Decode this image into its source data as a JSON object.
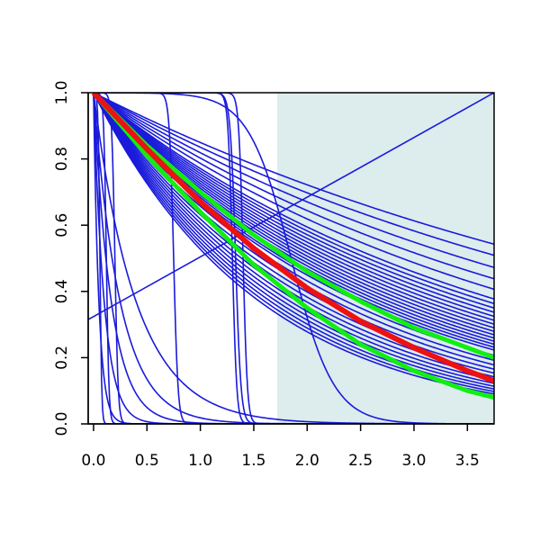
{
  "chart_data": {
    "type": "line",
    "title": "",
    "xlabel": "",
    "ylabel": "",
    "xlim": [
      -0.05,
      3.75
    ],
    "ylim": [
      0.0,
      1.0
    ],
    "x_ticks": [
      0.0,
      0.5,
      1.0,
      1.5,
      2.0,
      2.5,
      3.0,
      3.5
    ],
    "x_tick_labels": [
      "0.0",
      "0.5",
      "1.0",
      "1.5",
      "2.0",
      "2.5",
      "3.0",
      "3.5"
    ],
    "y_ticks": [
      0.0,
      0.2,
      0.4,
      0.6,
      0.8,
      1.0
    ],
    "y_tick_labels": [
      "0.0",
      "0.2",
      "0.4",
      "0.6",
      "0.8",
      "1.0"
    ],
    "grid": false,
    "legend": "none",
    "shaded_region": {
      "x_from": 1.72,
      "x_to": 3.75,
      "color": "#ddeced"
    },
    "colors": {
      "curves": "#1a1adb",
      "reference": "#ee1111",
      "bands": "#11ee11"
    },
    "reference_curve": {
      "x": [
        0,
        0.5,
        1.0,
        1.5,
        2.0,
        2.5,
        3.0,
        3.5,
        3.75
      ],
      "y": [
        1.0,
        0.83,
        0.67,
        0.53,
        0.41,
        0.31,
        0.23,
        0.16,
        0.13
      ]
    },
    "band_curves": [
      {
        "x": [
          0,
          0.5,
          1.0,
          1.5,
          2.0,
          2.5,
          3.0,
          3.5,
          3.75
        ],
        "y": [
          1.0,
          0.84,
          0.7,
          0.57,
          0.46,
          0.37,
          0.29,
          0.23,
          0.2
        ]
      },
      {
        "x": [
          0,
          0.5,
          1.0,
          1.5,
          2.0,
          2.5,
          3.0,
          3.5,
          3.75
        ],
        "y": [
          1.0,
          0.81,
          0.64,
          0.48,
          0.35,
          0.24,
          0.16,
          0.1,
          0.08
        ]
      }
    ],
    "curve_families": {
      "decay_k": [
        0.163,
        0.18,
        0.2,
        0.22,
        0.24,
        0.26,
        0.27,
        0.28,
        0.29,
        0.3,
        0.31,
        0.32,
        0.33,
        0.34,
        0.35,
        0.36,
        0.37,
        0.38,
        0.39,
        0.4,
        0.42,
        0.44,
        0.46,
        0.48,
        0.5,
        0.52,
        0.54,
        0.56,
        0.58,
        0.6,
        0.62,
        0.64
      ],
      "logistic": [
        {
          "mid": 0.2,
          "width": 0.015
        },
        {
          "mid": 0.75,
          "width": 0.02
        },
        {
          "mid": 1.3,
          "width": 0.02
        },
        {
          "mid": 1.33,
          "width": 0.025
        },
        {
          "mid": 1.4,
          "width": 0.02
        },
        {
          "mid": 1.85,
          "width": 0.2
        },
        {
          "mid": 0.12,
          "width": 0.012
        },
        {
          "mid": 0.06,
          "width": 0.008
        }
      ],
      "fast_decay_k": [
        2.5,
        4.0,
        6.0,
        10.0,
        20.0
      ],
      "linear": {
        "x": [
          -0.05,
          3.75
        ],
        "y": [
          0.315,
          1.0
        ]
      }
    }
  }
}
